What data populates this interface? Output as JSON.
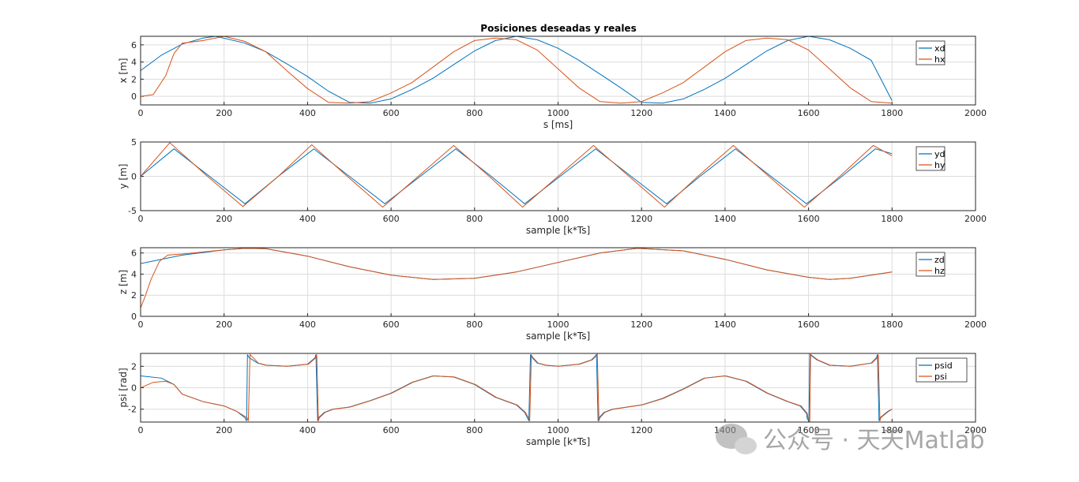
{
  "figure": {
    "title": "Posiciones deseadas y reales",
    "watermark": "公众号 · 天天Matlab",
    "colors": {
      "desired": "#0072BD",
      "real": "#D95319",
      "grid": "#dcdcdc",
      "axis": "#262626"
    }
  },
  "chart_data": [
    {
      "type": "line",
      "xlabel": "s [ms]",
      "ylabel": "x [m]",
      "xlim": [
        0,
        2000
      ],
      "ylim": [
        -1,
        7
      ],
      "xticks": [
        0,
        200,
        400,
        600,
        800,
        1000,
        1200,
        1400,
        1600,
        1800,
        2000
      ],
      "yticks": [
        0,
        2,
        4,
        6
      ],
      "grid": true,
      "legend_position": "top-right",
      "series": [
        {
          "name": "xd",
          "x": [
            0,
            50,
            100,
            150,
            180,
            250,
            300,
            350,
            400,
            450,
            500,
            550,
            600,
            650,
            700,
            750,
            800,
            850,
            900,
            950,
            1000,
            1050,
            1100,
            1150,
            1200,
            1250,
            1300,
            1350,
            1400,
            1450,
            1500,
            1550,
            1600,
            1650,
            1700,
            1750,
            1800
          ],
          "y": [
            3,
            4.8,
            6.1,
            6.8,
            7.0,
            6.2,
            5.2,
            3.8,
            2.3,
            0.6,
            -0.7,
            -0.8,
            -0.3,
            0.8,
            2.1,
            3.7,
            5.3,
            6.5,
            7.0,
            6.6,
            5.6,
            4.2,
            2.6,
            1.0,
            -0.7,
            -0.8,
            -0.3,
            0.8,
            2.1,
            3.7,
            5.3,
            6.5,
            7.0,
            6.6,
            5.6,
            4.2,
            -0.5
          ]
        },
        {
          "name": "hx",
          "x": [
            0,
            30,
            60,
            80,
            100,
            150,
            200,
            250,
            300,
            350,
            400,
            450,
            500,
            550,
            600,
            650,
            700,
            750,
            800,
            850,
            900,
            950,
            1000,
            1050,
            1100,
            1150,
            1200,
            1250,
            1300,
            1350,
            1400,
            1450,
            1500,
            1550,
            1600,
            1650,
            1700,
            1750,
            1800
          ],
          "y": [
            0,
            0.2,
            2.4,
            5.0,
            6.2,
            6.5,
            7.0,
            6.4,
            5.2,
            3.0,
            0.9,
            -0.7,
            -0.8,
            -0.6,
            0.4,
            1.6,
            3.4,
            5.2,
            6.5,
            6.8,
            6.6,
            5.4,
            3.2,
            1.0,
            -0.6,
            -0.8,
            -0.6,
            0.4,
            1.6,
            3.4,
            5.2,
            6.5,
            6.8,
            6.6,
            5.4,
            3.2,
            1.0,
            -0.6,
            -0.8
          ]
        }
      ]
    },
    {
      "type": "line",
      "xlabel": "sample [k*Ts]",
      "ylabel": "y [m]",
      "xlim": [
        0,
        2000
      ],
      "ylim": [
        -5,
        5
      ],
      "xticks": [
        0,
        200,
        400,
        600,
        800,
        1000,
        1200,
        1400,
        1600,
        1800,
        2000
      ],
      "yticks": [
        -5,
        0,
        5
      ],
      "grid": true,
      "legend_position": "top-right",
      "series": [
        {
          "name": "yd",
          "x": [
            0,
            80,
            165,
            250,
            330,
            415,
            500,
            585,
            670,
            755,
            840,
            920,
            1005,
            1090,
            1175,
            1260,
            1340,
            1425,
            1510,
            1595,
            1680,
            1760,
            1800
          ],
          "y": [
            0,
            4,
            0,
            -4,
            0,
            4,
            0,
            -4,
            0,
            4,
            0,
            -4,
            0,
            4,
            0,
            -4,
            0,
            4,
            0,
            -4,
            0,
            4,
            3.3
          ]
        },
        {
          "name": "hy",
          "x": [
            0,
            70,
            160,
            245,
            330,
            410,
            495,
            580,
            665,
            750,
            835,
            915,
            1000,
            1085,
            1170,
            1255,
            1335,
            1420,
            1505,
            1590,
            1675,
            1755,
            1800
          ],
          "y": [
            0,
            4.9,
            0,
            -4.4,
            0,
            4.6,
            0,
            -4.5,
            0,
            4.5,
            0,
            -4.5,
            0,
            4.5,
            0,
            -4.5,
            0,
            4.5,
            0,
            -4.5,
            0,
            4.5,
            3.0
          ]
        }
      ]
    },
    {
      "type": "line",
      "xlabel": "sample [k*Ts]",
      "ylabel": "z [m]",
      "xlim": [
        0,
        2000
      ],
      "ylim": [
        0,
        6.5
      ],
      "xticks": [
        0,
        200,
        400,
        600,
        800,
        1000,
        1200,
        1400,
        1600,
        1800,
        2000
      ],
      "yticks": [
        0,
        2,
        4,
        6
      ],
      "grid": true,
      "legend_position": "top-right",
      "series": [
        {
          "name": "zd",
          "x": [
            0,
            100,
            200,
            250,
            300,
            400,
            500,
            600,
            700,
            800,
            900,
            1000,
            1100,
            1190,
            1300,
            1400,
            1500,
            1600,
            1650,
            1700,
            1800
          ],
          "y": [
            5.0,
            5.8,
            6.3,
            6.45,
            6.4,
            5.7,
            4.7,
            3.9,
            3.5,
            3.6,
            4.2,
            5.1,
            6.0,
            6.45,
            6.2,
            5.4,
            4.4,
            3.7,
            3.5,
            3.6,
            4.2
          ]
        },
        {
          "name": "hz",
          "x": [
            0,
            10,
            25,
            45,
            65,
            100,
            200,
            250,
            300,
            400,
            500,
            600,
            700,
            800,
            900,
            1000,
            1100,
            1190,
            1300,
            1400,
            1500,
            1600,
            1650,
            1700,
            1800
          ],
          "y": [
            0.8,
            1.8,
            3.5,
            5.2,
            5.8,
            5.9,
            6.3,
            6.45,
            6.4,
            5.7,
            4.7,
            3.9,
            3.5,
            3.6,
            4.2,
            5.1,
            6.0,
            6.45,
            6.2,
            5.4,
            4.4,
            3.7,
            3.5,
            3.6,
            4.2
          ]
        }
      ]
    },
    {
      "type": "line",
      "xlabel": "sample [k*Ts]",
      "ylabel": "psi [rad]",
      "xlim": [
        0,
        2000
      ],
      "ylim": [
        -3.2,
        3.2
      ],
      "xticks": [
        0,
        200,
        400,
        600,
        800,
        1000,
        1200,
        1400,
        1600,
        1800,
        2000
      ],
      "yticks": [
        -2,
        0,
        2
      ],
      "grid": true,
      "legend_position": "top-right",
      "series": [
        {
          "name": "psid",
          "x": [
            0,
            50,
            80,
            100,
            150,
            200,
            230,
            250,
            254,
            256,
            260,
            280,
            300,
            350,
            400,
            418,
            420,
            424,
            426,
            440,
            460,
            500,
            550,
            600,
            650,
            700,
            750,
            800,
            850,
            900,
            920,
            928,
            930,
            934,
            936,
            950,
            970,
            1000,
            1050,
            1080,
            1090,
            1092,
            1096,
            1098,
            1110,
            1130,
            1200,
            1250,
            1300,
            1350,
            1400,
            1450,
            1500,
            1550,
            1580,
            1595,
            1597,
            1601,
            1603,
            1620,
            1650,
            1700,
            1750,
            1763,
            1765,
            1769,
            1771,
            1790,
            1800
          ],
          "y": [
            1.1,
            0.9,
            0.3,
            -0.6,
            -1.3,
            -1.7,
            -2.2,
            -2.8,
            -3.1,
            3.1,
            2.8,
            2.3,
            2.1,
            2.0,
            2.2,
            2.8,
            3.1,
            -3.1,
            -2.8,
            -2.3,
            -2.0,
            -1.8,
            -1.2,
            -0.5,
            0.5,
            1.1,
            1.0,
            0.3,
            -0.9,
            -1.6,
            -2.3,
            -2.9,
            -3.1,
            3.1,
            2.9,
            2.3,
            2.1,
            2.0,
            2.2,
            2.6,
            3.0,
            3.1,
            -3.1,
            -2.8,
            -2.3,
            -2.0,
            -1.6,
            -1.0,
            -0.1,
            0.9,
            1.1,
            0.6,
            -0.5,
            -1.3,
            -1.7,
            -2.4,
            -2.9,
            -3.1,
            3.1,
            2.6,
            2.1,
            2.0,
            2.3,
            2.8,
            3.1,
            -3.1,
            -2.8,
            -2.2,
            -2.0
          ]
        },
        {
          "name": "psi",
          "x": [
            0,
            30,
            60,
            80,
            100,
            150,
            200,
            230,
            255,
            258,
            262,
            282,
            302,
            352,
            402,
            420,
            422,
            426,
            428,
            442,
            462,
            502,
            552,
            602,
            652,
            702,
            752,
            802,
            852,
            902,
            922,
            930,
            932,
            936,
            938,
            952,
            972,
            1002,
            1052,
            1082,
            1092,
            1094,
            1098,
            1100,
            1112,
            1132,
            1202,
            1252,
            1302,
            1352,
            1402,
            1452,
            1502,
            1552,
            1582,
            1597,
            1599,
            1603,
            1605,
            1622,
            1652,
            1702,
            1752,
            1765,
            1767,
            1771,
            1773,
            1792,
            1800
          ],
          "y": [
            0,
            0.5,
            0.6,
            0.3,
            -0.6,
            -1.3,
            -1.7,
            -2.2,
            -2.8,
            -3.1,
            3.1,
            2.3,
            2.1,
            2.0,
            2.2,
            2.8,
            3.1,
            -3.1,
            -2.8,
            -2.3,
            -2.0,
            -1.8,
            -1.2,
            -0.5,
            0.5,
            1.1,
            1.0,
            0.3,
            -0.9,
            -1.6,
            -2.3,
            -2.9,
            -3.1,
            3.1,
            2.9,
            2.3,
            2.1,
            2.0,
            2.2,
            2.6,
            3.0,
            3.1,
            -3.1,
            -2.8,
            -2.3,
            -2.0,
            -1.6,
            -1.0,
            -0.1,
            0.9,
            1.1,
            0.6,
            -0.5,
            -1.3,
            -1.7,
            -2.4,
            -2.9,
            -3.1,
            3.1,
            2.6,
            2.1,
            2.0,
            2.3,
            2.8,
            3.1,
            -3.1,
            -2.8,
            -2.2,
            -2.0
          ]
        }
      ]
    }
  ]
}
